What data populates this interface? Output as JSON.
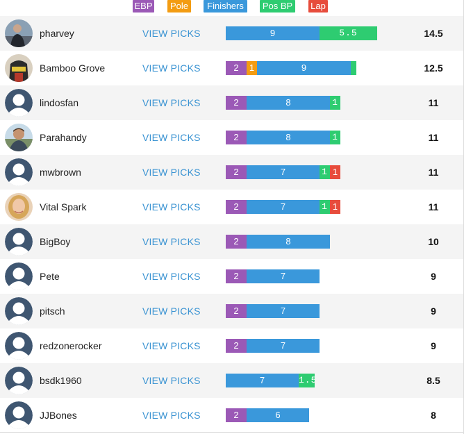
{
  "legend": [
    {
      "label": "EBP",
      "color": "#9b59b6"
    },
    {
      "label": "Pole",
      "color": "#f39c12"
    },
    {
      "label": "Finishers",
      "color": "#3a98db"
    },
    {
      "label": "Pos BP",
      "color": "#2ecc71"
    },
    {
      "label": "Lap",
      "color": "#e74c3c"
    }
  ],
  "view_picks_label": "VIEW PICKS",
  "rows": [
    {
      "name": "pharvey",
      "avatar": "photo-dark",
      "total": "14.5",
      "segments": [
        {
          "type": "finishers",
          "value": 9,
          "label": "9"
        },
        {
          "type": "pos_bp",
          "value": 5.5,
          "label": "5.5"
        }
      ]
    },
    {
      "name": "Bamboo Grove",
      "avatar": "photo-helmet",
      "total": "12.5",
      "segments": [
        {
          "type": "ebp",
          "value": 2,
          "label": "2"
        },
        {
          "type": "pole",
          "value": 1,
          "label": "1"
        },
        {
          "type": "finishers",
          "value": 9,
          "label": "9"
        },
        {
          "type": "pos_bp",
          "value": 0.5,
          "label": ""
        }
      ]
    },
    {
      "name": "lindosfan",
      "avatar": "default",
      "total": "11",
      "segments": [
        {
          "type": "ebp",
          "value": 2,
          "label": "2"
        },
        {
          "type": "finishers",
          "value": 8,
          "label": "8"
        },
        {
          "type": "pos_bp",
          "value": 1,
          "label": "1"
        }
      ]
    },
    {
      "name": "Parahandy",
      "avatar": "photo-man",
      "total": "11",
      "segments": [
        {
          "type": "ebp",
          "value": 2,
          "label": "2"
        },
        {
          "type": "finishers",
          "value": 8,
          "label": "8"
        },
        {
          "type": "pos_bp",
          "value": 1,
          "label": "1"
        }
      ]
    },
    {
      "name": "mwbrown",
      "avatar": "default",
      "total": "11",
      "segments": [
        {
          "type": "ebp",
          "value": 2,
          "label": "2"
        },
        {
          "type": "finishers",
          "value": 7,
          "label": "7"
        },
        {
          "type": "pos_bp",
          "value": 1,
          "label": "1"
        },
        {
          "type": "lap",
          "value": 1,
          "label": "1"
        }
      ]
    },
    {
      "name": "Vital Spark",
      "avatar": "photo-woman",
      "total": "11",
      "segments": [
        {
          "type": "ebp",
          "value": 2,
          "label": "2"
        },
        {
          "type": "finishers",
          "value": 7,
          "label": "7"
        },
        {
          "type": "pos_bp",
          "value": 1,
          "label": "1"
        },
        {
          "type": "lap",
          "value": 1,
          "label": "1"
        }
      ]
    },
    {
      "name": "BigBoy",
      "avatar": "default",
      "total": "10",
      "segments": [
        {
          "type": "ebp",
          "value": 2,
          "label": "2"
        },
        {
          "type": "finishers",
          "value": 8,
          "label": "8"
        }
      ]
    },
    {
      "name": "Pete",
      "avatar": "default",
      "total": "9",
      "segments": [
        {
          "type": "ebp",
          "value": 2,
          "label": "2"
        },
        {
          "type": "finishers",
          "value": 7,
          "label": "7"
        }
      ]
    },
    {
      "name": "pitsch",
      "avatar": "default",
      "total": "9",
      "segments": [
        {
          "type": "ebp",
          "value": 2,
          "label": "2"
        },
        {
          "type": "finishers",
          "value": 7,
          "label": "7"
        }
      ]
    },
    {
      "name": "redzonerocker",
      "avatar": "default",
      "total": "9",
      "segments": [
        {
          "type": "ebp",
          "value": 2,
          "label": "2"
        },
        {
          "type": "finishers",
          "value": 7,
          "label": "7"
        }
      ]
    },
    {
      "name": "bsdk1960",
      "avatar": "default",
      "total": "8.5",
      "segments": [
        {
          "type": "finishers",
          "value": 7,
          "label": "7"
        },
        {
          "type": "pos_bp",
          "value": 1.5,
          "label": "1.5"
        }
      ]
    },
    {
      "name": "JJBones",
      "avatar": "default",
      "total": "8",
      "segments": [
        {
          "type": "ebp",
          "value": 2,
          "label": "2"
        },
        {
          "type": "finishers",
          "value": 6,
          "label": "6"
        }
      ]
    }
  ],
  "segment_colors": {
    "ebp": "#9b59b6",
    "pole": "#f39c12",
    "finishers": "#3a98db",
    "pos_bp": "#2ecc71",
    "lap": "#e74c3c"
  }
}
